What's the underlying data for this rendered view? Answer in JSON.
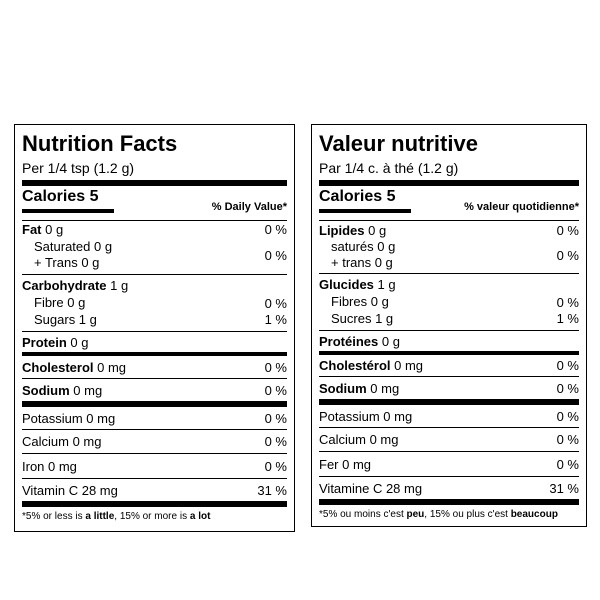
{
  "english": {
    "title": "Nutrition Facts",
    "serving": "Per 1/4 tsp (1.2 g)",
    "calories_label": "Calories 5",
    "dv_header": "% Daily Value*",
    "fat": {
      "label": "Fat",
      "amount": "0 g",
      "dv": "0 %"
    },
    "saturated": "Saturated 0 g",
    "trans": "+ Trans 0 g",
    "sat_trans_dv": "0 %",
    "carb": {
      "label": "Carbohydrate",
      "amount": "1 g"
    },
    "fibre": {
      "label": "Fibre 0 g",
      "dv": "0 %"
    },
    "sugars": {
      "label": "Sugars 1 g",
      "dv": "1 %"
    },
    "protein": {
      "label": "Protein",
      "amount": "0 g"
    },
    "cholesterol": {
      "label": "Cholesterol",
      "amount": "0 mg",
      "dv": "0 %"
    },
    "sodium": {
      "label": "Sodium",
      "amount": "0 mg",
      "dv": "0 %"
    },
    "potassium": {
      "label": "Potassium 0 mg",
      "dv": "0 %"
    },
    "calcium": {
      "label": "Calcium 0 mg",
      "dv": "0 %"
    },
    "iron": {
      "label": "Iron 0 mg",
      "dv": "0 %"
    },
    "vitc": {
      "label": "Vitamin C 28 mg",
      "dv": "31 %"
    },
    "foot": {
      "pre": "*5% or less is ",
      "b1": "a little",
      "mid": ", 15% or more is ",
      "b2": "a lot"
    }
  },
  "french": {
    "title": "Valeur nutritive",
    "serving": "Par 1/4 c. à thé (1.2 g)",
    "calories_label": "Calories 5",
    "dv_header": "% valeur quotidienne*",
    "fat": {
      "label": "Lipides",
      "amount": "0 g",
      "dv": "0 %"
    },
    "saturated": "saturés 0 g",
    "trans": "+ trans 0 g",
    "sat_trans_dv": "0 %",
    "carb": {
      "label": "Glucides",
      "amount": "1 g"
    },
    "fibre": {
      "label": "Fibres 0 g",
      "dv": "0 %"
    },
    "sugars": {
      "label": "Sucres 1 g",
      "dv": "1 %"
    },
    "protein": {
      "label": "Protéines",
      "amount": "0 g"
    },
    "cholesterol": {
      "label": "Cholestérol",
      "amount": "0 mg",
      "dv": "0 %"
    },
    "sodium": {
      "label": "Sodium",
      "amount": "0 mg",
      "dv": "0 %"
    },
    "potassium": {
      "label": "Potassium 0 mg",
      "dv": "0 %"
    },
    "calcium": {
      "label": "Calcium 0 mg",
      "dv": "0 %"
    },
    "iron": {
      "label": "Fer 0 mg",
      "dv": "0 %"
    },
    "vitc": {
      "label": "Vitamine C 28 mg",
      "dv": "31 %"
    },
    "foot": {
      "pre": "*5% ou moins c'est ",
      "b1": "peu",
      "mid": ", 15% ou plus c'est ",
      "b2": "beaucoup"
    }
  }
}
